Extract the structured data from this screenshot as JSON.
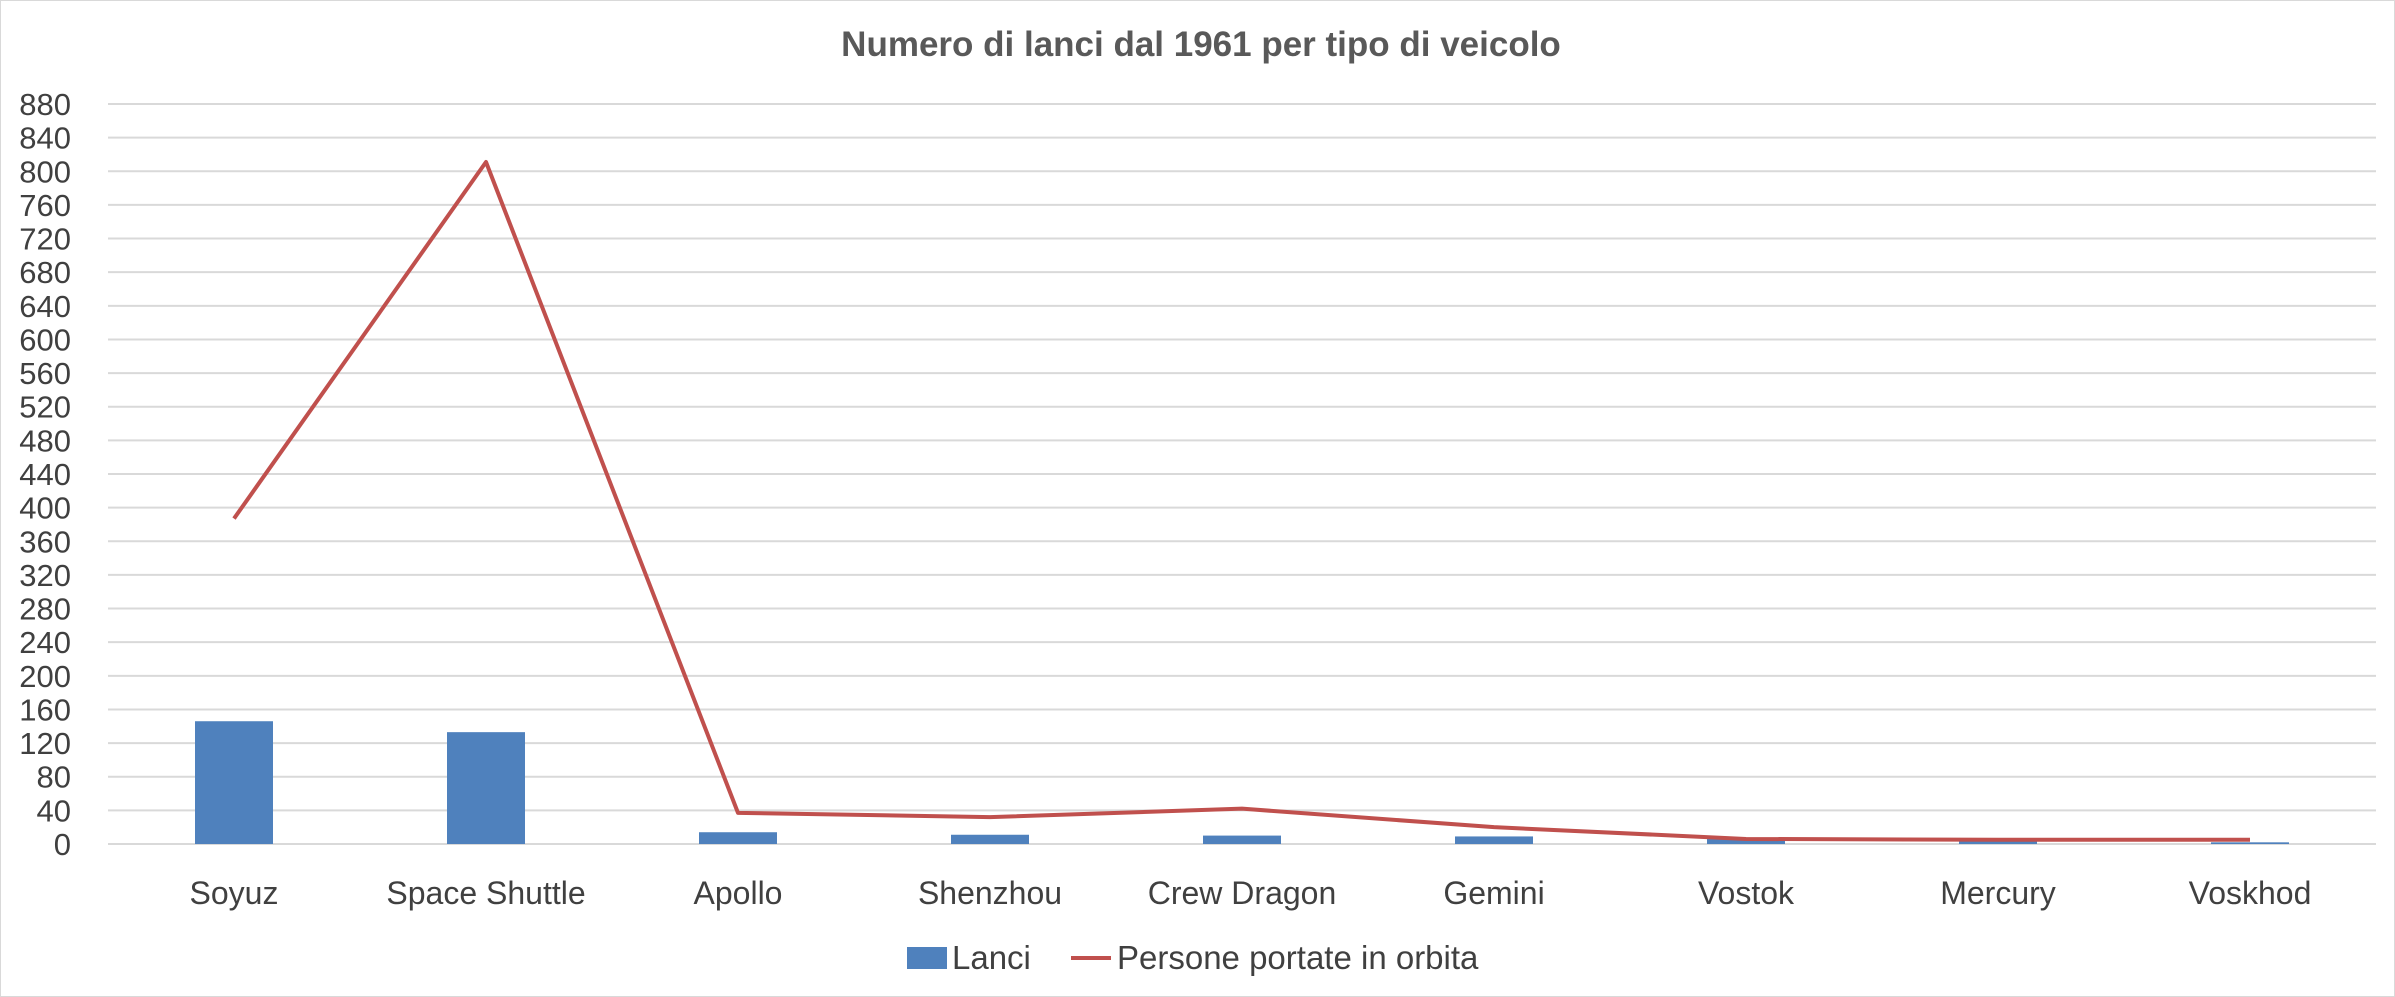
{
  "chart_data": {
    "type": "bar+line",
    "title": "Numero di lanci dal 1961 per tipo di veicolo",
    "xlabel": "",
    "ylabel": "",
    "categories": [
      "Soyuz",
      "Space Shuttle",
      "Apollo",
      "Shenzhou",
      "Crew Dragon",
      "Gemini",
      "Vostok",
      "Mercury",
      "Voskhod"
    ],
    "series": [
      {
        "name": "Lanci",
        "type": "bar",
        "color": "#4f81bd",
        "values": [
          146,
          133,
          14,
          11,
          10,
          9,
          6,
          4,
          2
        ]
      },
      {
        "name": "Persone portate in orbita",
        "type": "line",
        "color": "#c0504d",
        "values": [
          387,
          811,
          37,
          32,
          42,
          20,
          6,
          5,
          5
        ]
      }
    ],
    "ylim": [
      0,
      880
    ],
    "ytick_step": 40,
    "grid": true,
    "legend_position": "bottom"
  }
}
